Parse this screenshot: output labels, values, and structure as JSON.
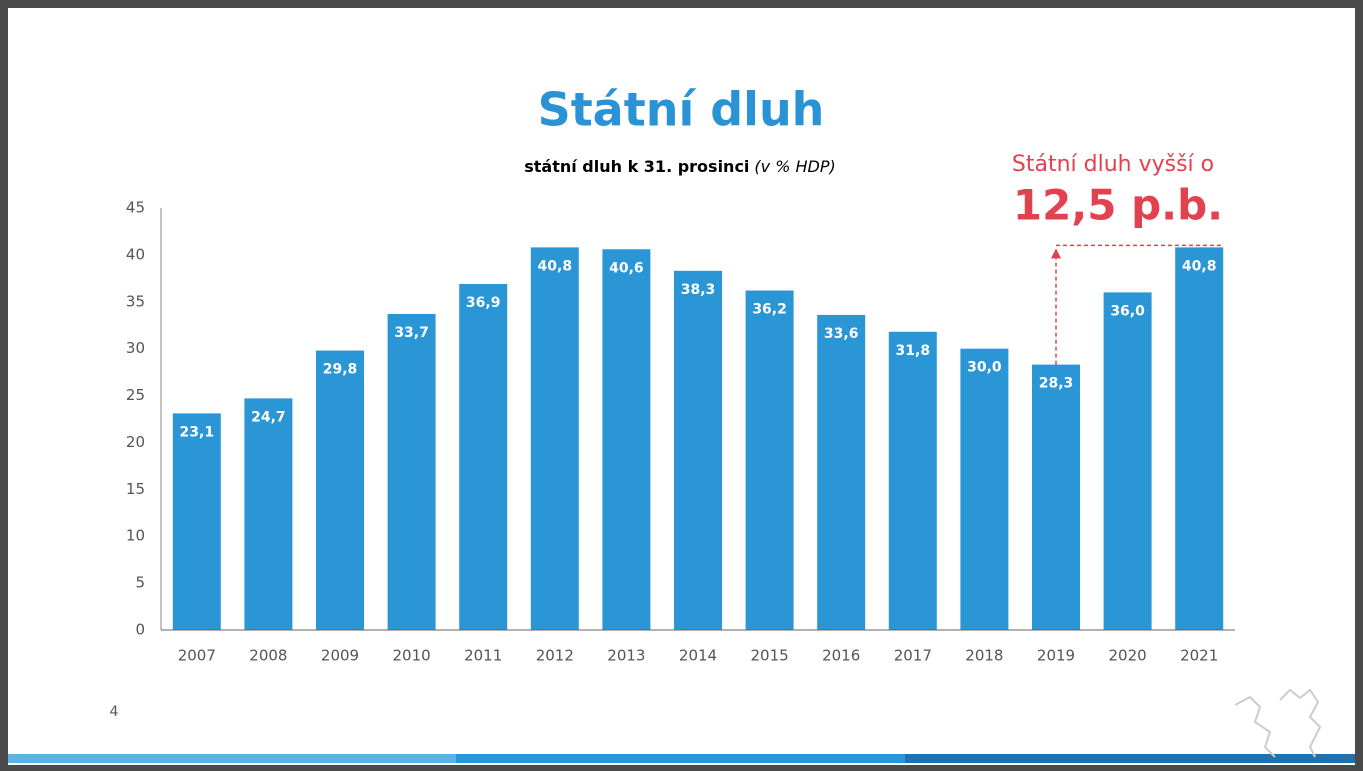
{
  "chart_data": {
    "type": "bar",
    "title": "Státní dluh",
    "subtitle": "státní dluh k 31. prosinci",
    "subtitle_unit": "(v % HDP)",
    "categories": [
      "2007",
      "2008",
      "2009",
      "2010",
      "2011",
      "2012",
      "2013",
      "2014",
      "2015",
      "2016",
      "2017",
      "2018",
      "2019",
      "2020",
      "2021"
    ],
    "values": [
      23.1,
      24.7,
      29.8,
      33.7,
      36.9,
      40.8,
      40.6,
      38.3,
      36.2,
      33.6,
      31.8,
      30.0,
      28.3,
      36.0,
      40.8
    ],
    "value_labels": [
      "23,1",
      "24,7",
      "29,8",
      "33,7",
      "36,9",
      "40,8",
      "40,6",
      "38,3",
      "36,2",
      "33,6",
      "31,8",
      "30,0",
      "28,3",
      "36,0",
      "40,8"
    ],
    "color": "#2b96d6",
    "ylim": [
      0,
      45
    ],
    "yticks": [
      0,
      5,
      10,
      15,
      20,
      25,
      30,
      35,
      40,
      45
    ],
    "grid": false,
    "annotation": {
      "text": "Státní dluh vyšší o",
      "value_text": "12,5 p.b."
    }
  },
  "page_number": "4"
}
